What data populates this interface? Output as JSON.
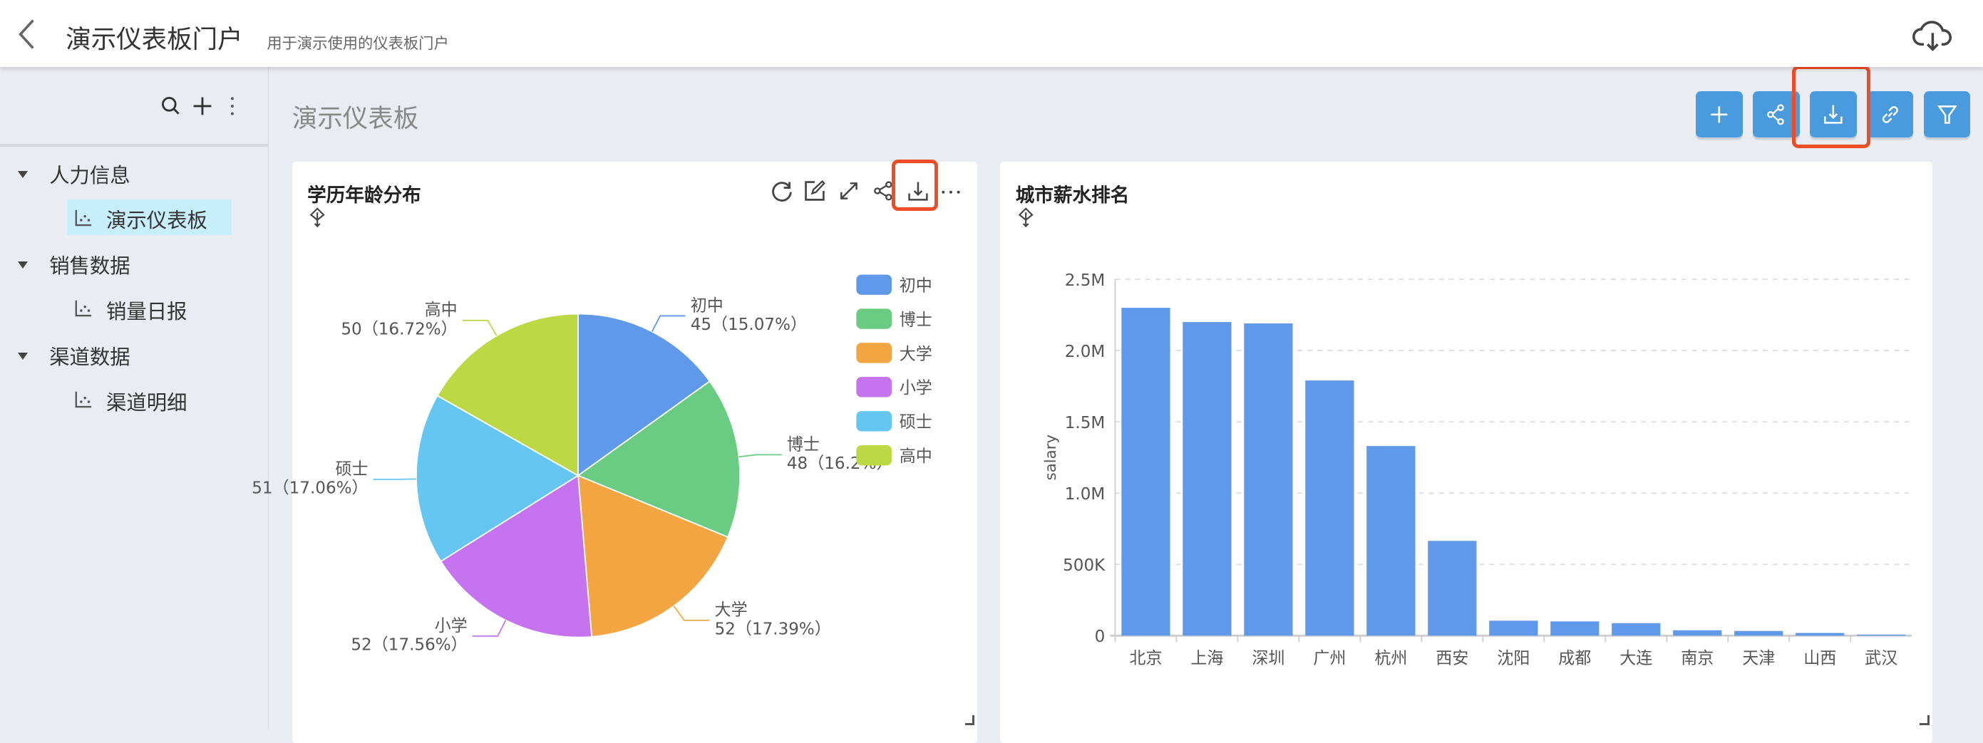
{
  "header": {
    "title": "演示仪表板门户",
    "subtitle": "用于演示使用的仪表板门户",
    "icons": [
      "chevron-left-icon",
      "cloud-download-icon"
    ]
  },
  "sidebar": {
    "toolbar_icons": [
      "search-icon",
      "plus-icon",
      "more-vertical-icon"
    ],
    "groups": [
      {
        "label": "人力信息",
        "items": [
          {
            "label": "演示仪表板",
            "active": true
          }
        ]
      },
      {
        "label": "销售数据",
        "items": [
          {
            "label": "销量日报",
            "active": false
          }
        ]
      },
      {
        "label": "渠道数据",
        "items": [
          {
            "label": "渠道明细",
            "active": false
          }
        ]
      }
    ]
  },
  "dashboard": {
    "title": "演示仪表板",
    "toolbar": [
      "plus-icon",
      "share-icon",
      "download-icon",
      "link-icon",
      "filter-icon"
    ],
    "accent": "#4a9ade",
    "highlight": "#ee4d26"
  },
  "chart_data": [
    {
      "type": "pie",
      "title": "学历年龄分布",
      "legend_position": "top-right",
      "slices": [
        {
          "name": "初中",
          "value": 45,
          "percent": "15.07%",
          "color": "#6099e9"
        },
        {
          "name": "博士",
          "value": 48,
          "percent": "16.2%",
          "color": "#6acb82"
        },
        {
          "name": "大学",
          "value": 52,
          "percent": "17.39%",
          "color": "#f2a541"
        },
        {
          "name": "小学",
          "value": 52,
          "percent": "17.56%",
          "color": "#c673f0"
        },
        {
          "name": "硕士",
          "value": 51,
          "percent": "17.06%",
          "color": "#66c6f2"
        },
        {
          "name": "高中",
          "value": 50,
          "percent": "16.72%",
          "color": "#bcd944"
        }
      ]
    },
    {
      "type": "bar",
      "title": "城市薪水排名",
      "xlabel": "",
      "ylabel": "salary",
      "ylim": [
        0,
        2500000
      ],
      "yticks": [
        "0",
        "500K",
        "1.0M",
        "1.5M",
        "2.0M",
        "2.5M"
      ],
      "grid": true,
      "color": "#6099e9",
      "categories": [
        "北京",
        "上海",
        "深圳",
        "广州",
        "杭州",
        "西安",
        "沈阳",
        "成都",
        "大连",
        "南京",
        "天津",
        "山西",
        "武汉"
      ],
      "values": [
        2300000,
        2200000,
        2190000,
        1790000,
        1330000,
        665000,
        105000,
        100000,
        88000,
        38000,
        33000,
        19000,
        8000
      ]
    }
  ]
}
